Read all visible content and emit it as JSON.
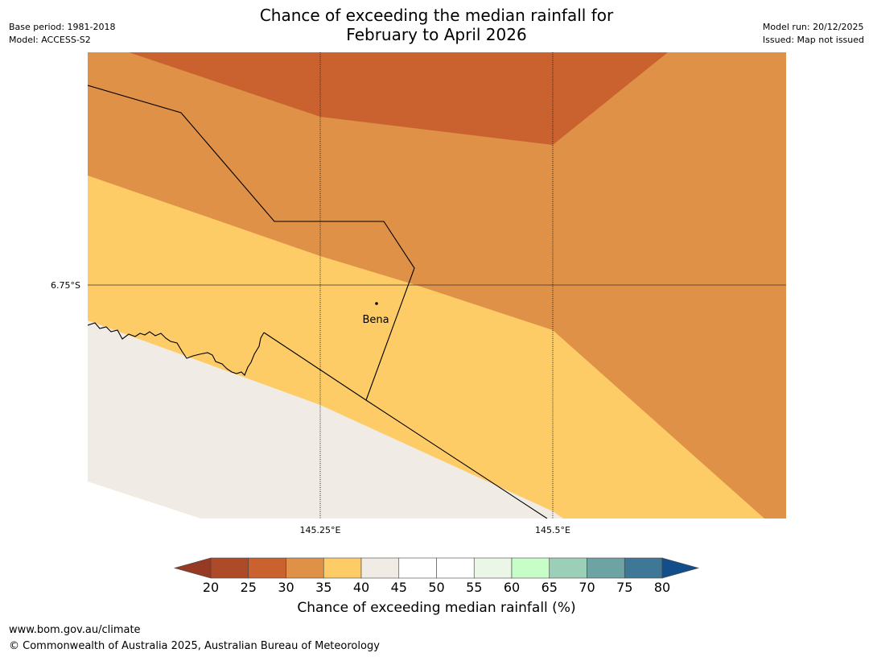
{
  "title": {
    "line1": "Chance of exceeding the median rainfall for",
    "line2": "February to April 2026"
  },
  "meta_left": {
    "base_period": "Base period: 1981-2018",
    "model": "Model: ACCESS-S2"
  },
  "meta_right": {
    "model_run": "Model run: 20/12/2025",
    "issued": "Issued: Map not issued"
  },
  "map": {
    "lat_label": "6.75°S",
    "lon_labels": [
      "145.25°E",
      "145.5°E"
    ],
    "place": "Bena"
  },
  "colorbar": {
    "title": "Chance of exceeding median rainfall (%)",
    "ticks": [
      "20",
      "25",
      "30",
      "35",
      "40",
      "45",
      "50",
      "55",
      "60",
      "65",
      "70",
      "75",
      "80"
    ],
    "colors": [
      "#ad4a27",
      "#c9622f",
      "#df9147",
      "#fdcc67",
      "#f0ece5",
      "#ffffff",
      "#ffffff",
      "#eaf6e6",
      "#c7fdc7",
      "#9ccfb7",
      "#6ea3a4",
      "#3f7897"
    ],
    "under_color": "#963a24",
    "over_color": "#134e8a"
  },
  "legend_colors": {
    "band_25_30": "#c9622f",
    "band_30_35": "#df9147",
    "band_35_40": "#fdcc67",
    "band_40_45": "#f0ece5"
  },
  "footer": {
    "url": "www.bom.gov.au/climate",
    "copyright": "© Commonwealth of Australia 2025, Australian Bureau of Meteorology"
  }
}
